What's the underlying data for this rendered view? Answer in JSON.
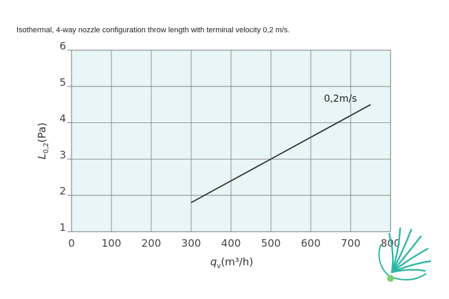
{
  "page": {
    "title": "Isothermal, 4-way nozzle configuration throw length with terminal velocity 0,2 m/s."
  },
  "chart_data": {
    "type": "line",
    "title": "",
    "xlabel": {
      "symbol": "q",
      "subscript": "v",
      "unit": "(m³/h)"
    },
    "ylabel": {
      "symbol": "L",
      "subscript": "0,2",
      "unit": "(Pa)"
    },
    "xlim": [
      0,
      800
    ],
    "ylim": [
      1,
      6
    ],
    "xticks": [
      "0",
      "100",
      "200",
      "300",
      "400",
      "500",
      "600",
      "700",
      "800"
    ],
    "yticks": [
      "1",
      "2",
      "3",
      "4",
      "5",
      "6"
    ],
    "grid": true,
    "series": [
      {
        "name": "0,2m/s",
        "x": [
          300,
          750
        ],
        "y": [
          1.8,
          4.5
        ]
      }
    ],
    "colors": {
      "plot_background": "#e8f6f5",
      "grid": "#7a7a7a",
      "line": "#333333",
      "logo": "#2fb6a3"
    }
  },
  "logo": {
    "name": "brand-logo",
    "icon": "fan-burst-icon"
  }
}
